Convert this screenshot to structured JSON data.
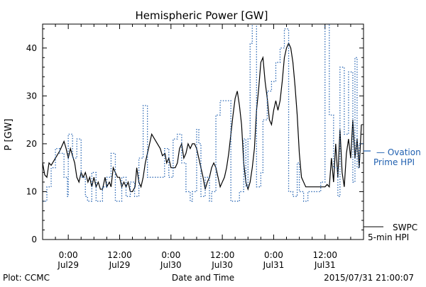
{
  "chart_data": {
    "type": "line",
    "title": "Hemispheric Power [GW]",
    "ylabel": "P [GW]",
    "xlabel": "Date and Time",
    "xlim_hours": [
      -6,
      69
    ],
    "ylim": [
      0,
      45
    ],
    "grid": false,
    "y_ticks": [
      0,
      10,
      20,
      30,
      40
    ],
    "x_ticks": [
      {
        "t": 0,
        "time": "0:00",
        "date": "Jul29"
      },
      {
        "t": 12,
        "time": "12:00",
        "date": "Jul29"
      },
      {
        "t": 24,
        "time": "0:00",
        "date": "Jul30"
      },
      {
        "t": 36,
        "time": "12:00",
        "date": "Jul30"
      },
      {
        "t": 48,
        "time": "0:00",
        "date": "Jul31"
      },
      {
        "t": 60,
        "time": "12:00",
        "date": "Jul31"
      }
    ],
    "series": [
      {
        "name": "SWPC 5-min HPI",
        "legend_lines": [
          "SWPC",
          "5-min HPI"
        ],
        "color": "#000000",
        "style": "solid",
        "points": [
          [
            -6,
            16
          ],
          [
            -5.5,
            13.5
          ],
          [
            -5,
            13
          ],
          [
            -4.5,
            16
          ],
          [
            -4,
            15.5
          ],
          [
            -3,
            17
          ],
          [
            -2,
            18.5
          ],
          [
            -1,
            20.5
          ],
          [
            -0.5,
            19
          ],
          [
            0,
            17
          ],
          [
            0.5,
            19
          ],
          [
            1,
            17.5
          ],
          [
            1.5,
            16
          ],
          [
            2,
            13
          ],
          [
            2.5,
            12
          ],
          [
            3,
            14
          ],
          [
            3.5,
            13
          ],
          [
            4,
            14
          ],
          [
            4.6,
            12
          ],
          [
            5,
            13
          ],
          [
            5.5,
            11
          ],
          [
            6,
            13
          ],
          [
            6.5,
            11
          ],
          [
            7,
            12
          ],
          [
            7.5,
            10.5
          ],
          [
            8,
            10.5
          ],
          [
            8.6,
            13
          ],
          [
            9,
            11
          ],
          [
            9.6,
            12
          ],
          [
            10,
            11
          ],
          [
            10.5,
            15
          ],
          [
            11,
            14
          ],
          [
            11.5,
            13
          ],
          [
            12,
            13
          ],
          [
            12.5,
            11
          ],
          [
            13,
            12
          ],
          [
            13.5,
            11
          ],
          [
            14,
            12
          ],
          [
            14.5,
            10
          ],
          [
            15,
            10
          ],
          [
            15.6,
            11
          ],
          [
            16,
            15
          ],
          [
            16.5,
            12
          ],
          [
            17,
            11
          ],
          [
            17.5,
            13
          ],
          [
            18,
            16
          ],
          [
            19,
            20
          ],
          [
            19.5,
            22
          ],
          [
            20.5,
            20.5
          ],
          [
            21.5,
            19
          ],
          [
            22,
            17.5
          ],
          [
            22.6,
            18
          ],
          [
            23,
            16
          ],
          [
            23.5,
            17
          ],
          [
            24,
            15
          ],
          [
            25,
            15
          ],
          [
            25.5,
            16
          ],
          [
            26,
            19
          ],
          [
            26.5,
            20
          ],
          [
            27,
            17
          ],
          [
            27.5,
            18
          ],
          [
            28,
            20
          ],
          [
            28.5,
            19
          ],
          [
            29,
            20
          ],
          [
            29.5,
            20
          ],
          [
            30,
            19
          ],
          [
            30.5,
            17
          ],
          [
            31,
            15
          ],
          [
            31.5,
            13
          ],
          [
            32,
            10.5
          ],
          [
            32.5,
            12
          ],
          [
            33,
            13
          ],
          [
            33.5,
            15
          ],
          [
            34,
            16
          ],
          [
            34.5,
            15
          ],
          [
            35,
            13
          ],
          [
            35.5,
            11
          ],
          [
            36,
            12
          ],
          [
            36.5,
            13
          ],
          [
            37,
            15
          ],
          [
            37.5,
            18
          ],
          [
            38,
            22
          ],
          [
            38.5,
            26
          ],
          [
            39,
            29.5
          ],
          [
            39.5,
            31
          ],
          [
            40,
            28
          ],
          [
            40.5,
            24
          ],
          [
            41,
            16
          ],
          [
            41.5,
            12
          ],
          [
            42,
            10.5
          ],
          [
            42.5,
            12
          ],
          [
            43,
            15
          ],
          [
            43.5,
            19
          ],
          [
            44,
            27
          ],
          [
            44.5,
            31.5
          ],
          [
            45,
            37
          ],
          [
            45.5,
            38
          ],
          [
            46,
            33
          ],
          [
            46.5,
            29.5
          ],
          [
            47,
            25
          ],
          [
            47.5,
            24
          ],
          [
            48,
            27
          ],
          [
            48.5,
            29
          ],
          [
            49,
            27
          ],
          [
            49.5,
            29
          ],
          [
            50,
            33
          ],
          [
            50.5,
            38
          ],
          [
            51,
            40
          ],
          [
            51.5,
            41
          ],
          [
            52,
            40
          ],
          [
            52.5,
            37
          ],
          [
            53,
            32
          ],
          [
            53.5,
            26
          ],
          [
            54,
            18
          ],
          [
            54.5,
            13
          ],
          [
            55,
            12
          ],
          [
            55.5,
            11
          ],
          [
            56,
            11
          ],
          [
            57,
            11
          ],
          [
            58,
            11
          ],
          [
            59,
            11
          ],
          [
            60,
            11
          ],
          [
            60.5,
            11.5
          ],
          [
            61,
            11
          ],
          [
            61.5,
            17
          ],
          [
            62,
            12
          ],
          [
            62.5,
            20
          ],
          [
            63,
            13
          ],
          [
            63.5,
            23
          ],
          [
            64,
            14
          ],
          [
            64.5,
            11
          ],
          [
            65,
            18
          ],
          [
            65.5,
            21
          ],
          [
            66,
            17
          ],
          [
            66.5,
            25
          ],
          [
            67,
            17
          ],
          [
            67.5,
            21
          ],
          [
            68,
            15
          ],
          [
            68.5,
            24
          ]
        ]
      },
      {
        "name": "Ovation Prime HPI",
        "legend_lines": [
          "— Ovation",
          "Prime HPI"
        ],
        "color": "#2060b0",
        "style": "dotted-step",
        "points": [
          [
            -6,
            8
          ],
          [
            -5,
            11
          ],
          [
            -4,
            15
          ],
          [
            -3,
            19
          ],
          [
            -2,
            18
          ],
          [
            -1,
            13
          ],
          [
            -0.2,
            9
          ],
          [
            0,
            22
          ],
          [
            1,
            17
          ],
          [
            2,
            21
          ],
          [
            3,
            13
          ],
          [
            4,
            9
          ],
          [
            4.5,
            8
          ],
          [
            5.5,
            14
          ],
          [
            6.5,
            8
          ],
          [
            8,
            11
          ],
          [
            9,
            13
          ],
          [
            10,
            18
          ],
          [
            11,
            8
          ],
          [
            12.5,
            13
          ],
          [
            13.5,
            9
          ],
          [
            14.5,
            12
          ],
          [
            15.5,
            9
          ],
          [
            16.5,
            17
          ],
          [
            17.5,
            28
          ],
          [
            18.5,
            13
          ],
          [
            20,
            13
          ],
          [
            21.5,
            13
          ],
          [
            22.5,
            19
          ],
          [
            23.5,
            13
          ],
          [
            24.5,
            21
          ],
          [
            25.5,
            22
          ],
          [
            26.5,
            16
          ],
          [
            27.5,
            10
          ],
          [
            28.5,
            8
          ],
          [
            29,
            10
          ],
          [
            30,
            23
          ],
          [
            30.5,
            20
          ],
          [
            31,
            9
          ],
          [
            32,
            13
          ],
          [
            33,
            8
          ],
          [
            33.5,
            10
          ],
          [
            34.5,
            26
          ],
          [
            35.5,
            29
          ],
          [
            37,
            29
          ],
          [
            38,
            8
          ],
          [
            39.5,
            8
          ],
          [
            40,
            10
          ],
          [
            41,
            21
          ],
          [
            41.5,
            11
          ],
          [
            42,
            21
          ],
          [
            42.5,
            41
          ],
          [
            43,
            46
          ],
          [
            44,
            11
          ],
          [
            45,
            14
          ],
          [
            45.5,
            25
          ],
          [
            46.5,
            31
          ],
          [
            47.5,
            33
          ],
          [
            48.5,
            37
          ],
          [
            49.5,
            40
          ],
          [
            50.5,
            44
          ],
          [
            51.5,
            10
          ],
          [
            52.5,
            9
          ],
          [
            53.5,
            16
          ],
          [
            54,
            10
          ],
          [
            55,
            8
          ],
          [
            56,
            10
          ],
          [
            58,
            10
          ],
          [
            59,
            12
          ],
          [
            60,
            45
          ],
          [
            61,
            26
          ],
          [
            62,
            15
          ],
          [
            63,
            9
          ],
          [
            63.5,
            36
          ],
          [
            64.5,
            22
          ],
          [
            65.5,
            35
          ],
          [
            66.5,
            12
          ],
          [
            67,
            38
          ],
          [
            67.5,
            15
          ],
          [
            68,
            20
          ]
        ]
      }
    ]
  },
  "labels": {
    "plot_credit": "Plot: CCMC",
    "timestamp": "2015/07/31 21:00:07"
  }
}
